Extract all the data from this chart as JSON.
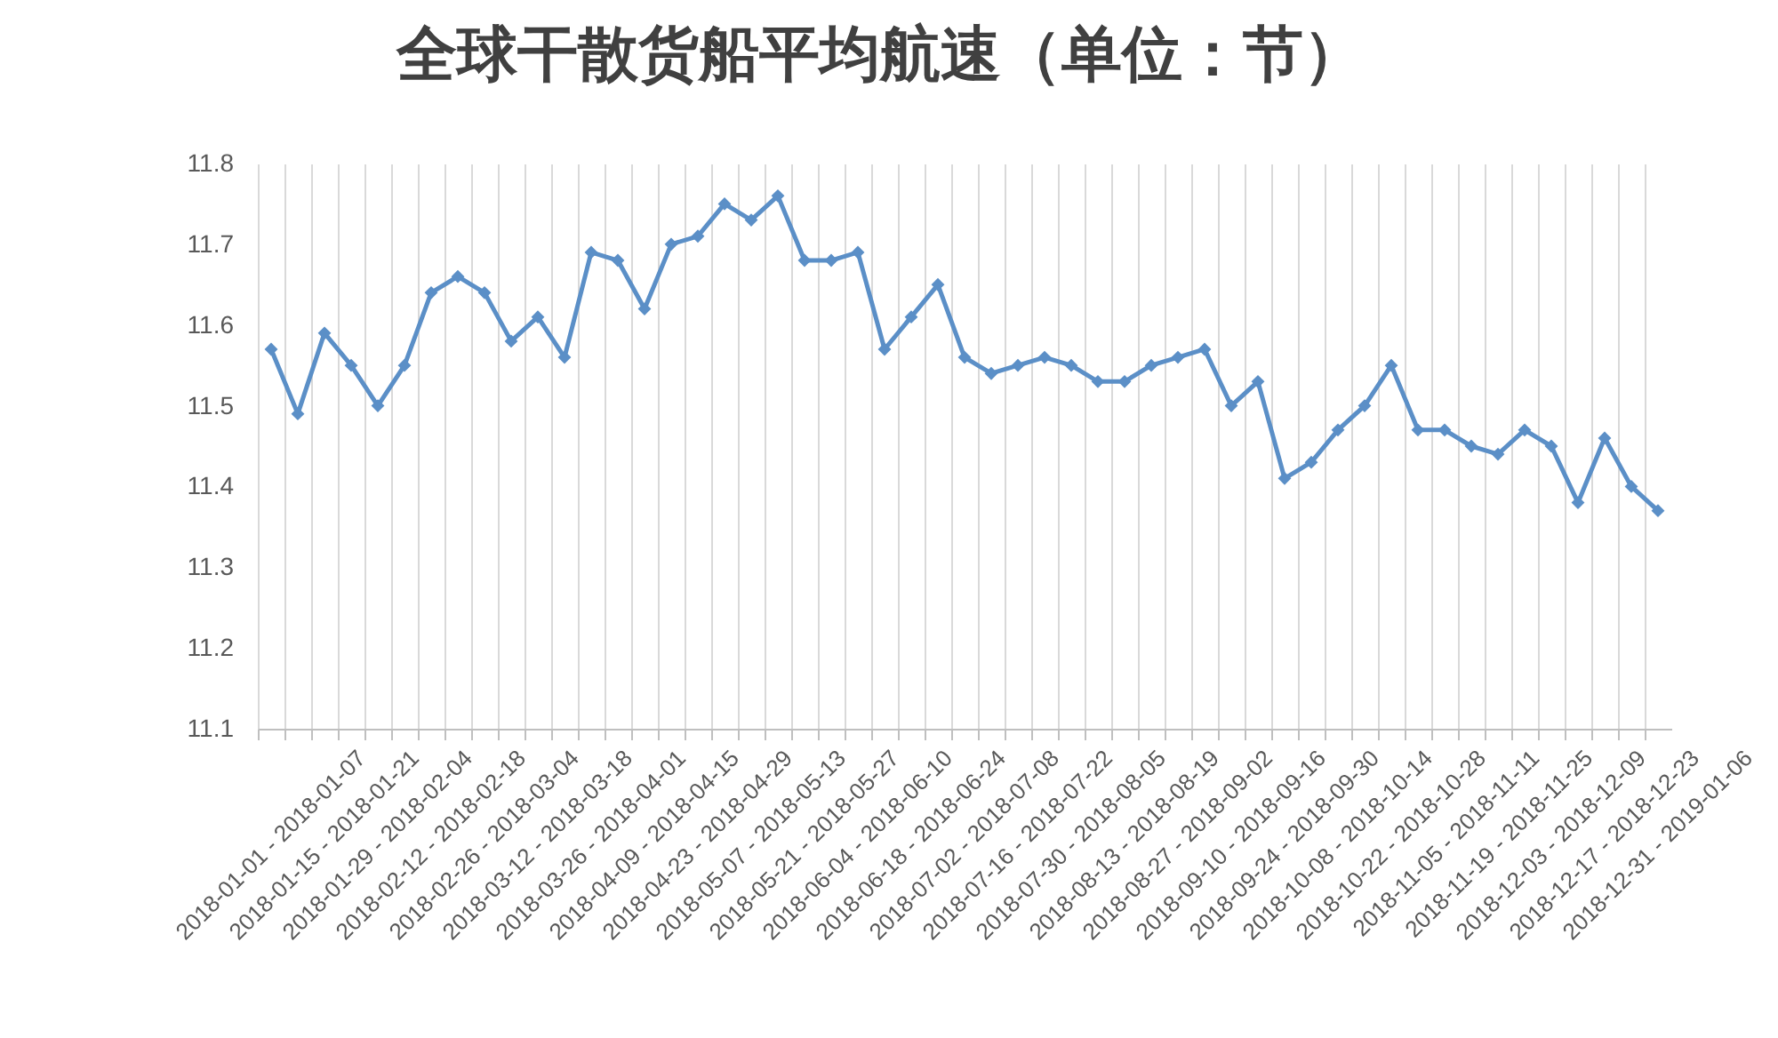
{
  "chart_data": {
    "type": "line",
    "title": "全球干散货船平均航速（单位：节）",
    "categories": [
      "2018-01-01 - 2018-01-07",
      null,
      "2018-01-15 - 2018-01-21",
      null,
      "2018-01-29 - 2018-02-04",
      null,
      "2018-02-12 - 2018-02-18",
      null,
      "2018-02-26 - 2018-03-04",
      null,
      "2018-03-12 - 2018-03-18",
      null,
      "2018-03-26 - 2018-04-01",
      null,
      "2018-04-09 - 2018-04-15",
      null,
      "2018-04-23 - 2018-04-29",
      null,
      "2018-05-07 - 2018-05-13",
      null,
      "2018-05-21 - 2018-05-27",
      null,
      "2018-06-04 - 2018-06-10",
      null,
      "2018-06-18 - 2018-06-24",
      null,
      "2018-07-02 - 2018-07-08",
      null,
      "2018-07-16 - 2018-07-22",
      null,
      "2018-07-30 - 2018-08-05",
      null,
      "2018-08-13 - 2018-08-19",
      null,
      "2018-08-27 - 2018-09-02",
      null,
      "2018-09-10 - 2018-09-16",
      null,
      "2018-09-24 - 2018-09-30",
      null,
      "2018-10-08 - 2018-10-14",
      null,
      "2018-10-22 - 2018-10-28",
      null,
      "2018-11-05 - 2018-11-11",
      null,
      "2018-11-19 - 2018-11-25",
      null,
      "2018-12-03 - 2018-12-09",
      null,
      "2018-12-17 - 2018-12-23",
      null,
      "2018-12-31 - 2019-01-06"
    ],
    "series": [
      {
        "color": "#5b8fc7",
        "values": [
          11.57,
          11.49,
          11.59,
          11.55,
          11.5,
          11.55,
          11.64,
          11.66,
          11.64,
          11.58,
          11.61,
          11.56,
          11.69,
          11.68,
          11.62,
          11.7,
          11.71,
          11.75,
          11.73,
          11.76,
          11.68,
          11.68,
          11.69,
          11.57,
          11.61,
          11.65,
          11.56,
          11.54,
          11.55,
          11.56,
          11.55,
          11.53,
          11.53,
          11.55,
          11.56,
          11.57,
          11.5,
          11.53,
          11.41,
          11.43,
          11.47,
          11.5,
          11.55,
          11.47,
          11.47,
          11.45,
          11.44,
          11.47,
          11.45,
          11.38,
          11.46,
          11.4,
          11.37
        ]
      }
    ],
    "ylim": [
      11.1,
      11.8
    ],
    "yticks": [
      11.1,
      11.2,
      11.3,
      11.4,
      11.5,
      11.6,
      11.7,
      11.8
    ],
    "grid": "x",
    "marker": "diamond"
  }
}
